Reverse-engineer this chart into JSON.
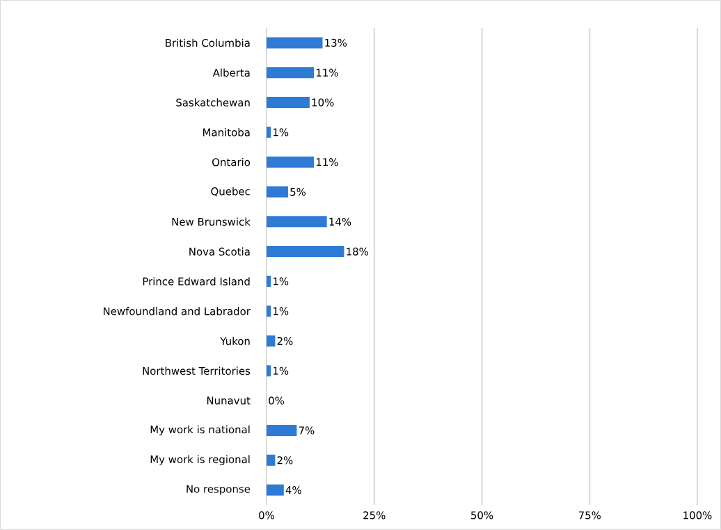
{
  "chart_data": {
    "type": "bar",
    "orientation": "horizontal",
    "categories": [
      "British Columbia",
      "Alberta",
      "Saskatchewan",
      "Manitoba",
      "Ontario",
      "Quebec",
      "New Brunswick",
      "Nova Scotia",
      "Prince Edward Island",
      "Newfoundland and Labrador",
      "Yukon",
      "Northwest Territories",
      "Nunavut",
      "My work is national",
      "My work is regional",
      "No response"
    ],
    "values": [
      13,
      11,
      10,
      1,
      11,
      5,
      14,
      18,
      1,
      1,
      2,
      1,
      0,
      7,
      2,
      4
    ],
    "value_labels": [
      "13%",
      "11%",
      "10%",
      "1%",
      "11%",
      "5%",
      "14%",
      "18%",
      "1%",
      "1%",
      "2%",
      "1%",
      "0%",
      "7%",
      "2%",
      "4%"
    ],
    "color": "#2e7bd6",
    "xlim": [
      0,
      100
    ],
    "xticks": [
      {
        "value": 0,
        "label": "0%"
      },
      {
        "value": 25,
        "label": "25%"
      },
      {
        "value": 50,
        "label": "50%"
      },
      {
        "value": 75,
        "label": "75%"
      },
      {
        "value": 100,
        "label": "100%"
      }
    ],
    "grid": "x"
  }
}
